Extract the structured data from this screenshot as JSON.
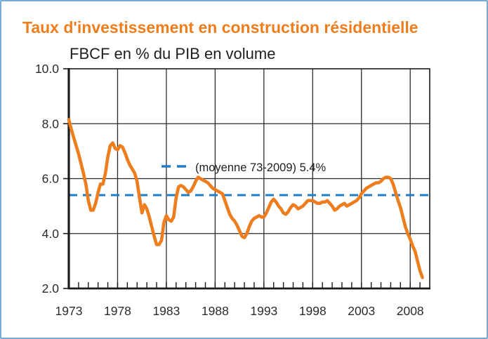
{
  "title": {
    "text": "Taux d'investissement en construction résidentielle"
  },
  "subtitle": {
    "text": "FBCF en % du PIB en volume"
  },
  "colors": {
    "accent_orange": "#EE7D1E",
    "mean_blue": "#1E7CC8",
    "frame_blue": "#76ABDA",
    "grid": "#2B2B2B",
    "axis": "#1A1A1A",
    "text": "#2B2B2B"
  },
  "chart_data": {
    "type": "line",
    "title": "Taux d'investissement en construction résidentielle",
    "subtitle": "FBCF en % du PIB en volume",
    "xlabel": "",
    "ylabel": "FBCF en % du PIB en volume",
    "xlim": [
      1973,
      2010
    ],
    "ylim": [
      2.0,
      10.0
    ],
    "grid": true,
    "y_ticks": [
      2,
      4,
      6,
      8,
      10
    ],
    "y_tick_labels": [
      "2.0",
      "4.0",
      "6.0",
      "8.0",
      "10.0"
    ],
    "x_ticks": [
      1973,
      1978,
      1983,
      1988,
      1993,
      1998,
      2003,
      2008
    ],
    "x_tick_labels": [
      "1973",
      "1978",
      "1983",
      "1988",
      "1993",
      "1998",
      "2003",
      "2008"
    ],
    "x_minor_tick_step_years": 1,
    "legend_position": "inside-top",
    "mean_line": {
      "value": 5.4,
      "label": "(moyenne 73-2009) 5.4%",
      "color": "#1E7CC8",
      "style": "dashed"
    },
    "series": [
      {
        "name": "Taux d'investissement en construction résidentielle (FBCF en % du PIB en volume)",
        "color": "#EE7D1E",
        "unit": "% du PIB",
        "x_start": 1973.0,
        "x_step": 0.25,
        "values": [
          8.15,
          7.8,
          7.5,
          7.2,
          6.9,
          6.55,
          6.2,
          5.8,
          5.2,
          4.85,
          4.85,
          5.1,
          5.5,
          5.8,
          5.8,
          6.2,
          6.8,
          7.2,
          7.3,
          7.1,
          7.05,
          7.2,
          7.15,
          6.95,
          6.7,
          6.5,
          6.35,
          6.2,
          5.9,
          5.3,
          4.75,
          5.05,
          4.9,
          4.6,
          4.25,
          3.9,
          3.6,
          3.6,
          3.75,
          4.4,
          4.65,
          4.5,
          4.45,
          4.6,
          5.3,
          5.7,
          5.75,
          5.7,
          5.6,
          5.5,
          5.55,
          5.7,
          5.9,
          6.05,
          6.0,
          5.95,
          5.9,
          5.85,
          5.75,
          5.65,
          5.6,
          5.55,
          5.5,
          5.45,
          5.2,
          4.95,
          4.7,
          4.55,
          4.45,
          4.3,
          4.1,
          3.9,
          3.85,
          4.0,
          4.25,
          4.45,
          4.55,
          4.6,
          4.65,
          4.6,
          4.6,
          4.75,
          4.95,
          5.15,
          5.25,
          5.15,
          5.0,
          4.9,
          4.75,
          4.7,
          4.8,
          4.95,
          5.05,
          5.0,
          4.9,
          4.95,
          5.0,
          5.1,
          5.2,
          5.2,
          5.2,
          5.15,
          5.1,
          5.1,
          5.15,
          5.15,
          5.2,
          5.1,
          5.0,
          4.85,
          4.9,
          5.0,
          5.05,
          5.1,
          5.0,
          5.05,
          5.1,
          5.15,
          5.2,
          5.3,
          5.45,
          5.55,
          5.65,
          5.7,
          5.75,
          5.8,
          5.85,
          5.85,
          5.9,
          6.0,
          6.05,
          6.05,
          6.0,
          5.8,
          5.5,
          5.2,
          4.95,
          4.6,
          4.25,
          4.0,
          3.8,
          3.55,
          3.35,
          3.0,
          2.65,
          2.4
        ]
      }
    ]
  }
}
